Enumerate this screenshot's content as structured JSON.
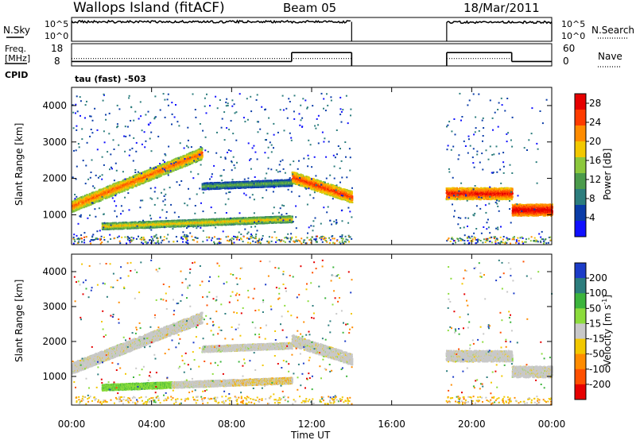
{
  "header": {
    "station": "Wallops Island (fitACF)",
    "beam": "Beam 05",
    "date": "18/Mar/2011"
  },
  "strip_sky": {
    "left_label": "N.Sky",
    "right_label": "N.Search",
    "tick_top": "10^5",
    "tick_bottom": "10^0",
    "y_log_range": [
      0,
      5
    ],
    "segments": [
      {
        "x_range": [
          "00:00",
          "14:00"
        ],
        "level_log": 4.1
      },
      {
        "x_range": [
          "18:45",
          "24:00"
        ],
        "level_log": 4.0
      }
    ]
  },
  "strip_freq": {
    "left_label_line1": "Freq.",
    "left_label_line2": "[MHz]",
    "right_label": "Nave",
    "left_ticks": [
      "18",
      "8"
    ],
    "right_ticks": [
      "60",
      "0"
    ],
    "freq_range_mhz": [
      8,
      18
    ],
    "nave_range": [
      0,
      60
    ],
    "freq_segments": [
      {
        "x_range": [
          "00:00",
          "11:00"
        ],
        "freq_mhz": 10
      },
      {
        "x_range": [
          "11:00",
          "14:00"
        ],
        "freq_mhz": 14
      },
      {
        "x_range": [
          "18:45",
          "22:00"
        ],
        "freq_mhz": 14
      },
      {
        "x_range": [
          "22:00",
          "24:00"
        ],
        "freq_mhz": 10
      }
    ],
    "nave_segments": [
      {
        "x_range": [
          "00:00",
          "14:00"
        ],
        "nave": 20
      },
      {
        "x_range": [
          "18:45",
          "22:00"
        ],
        "nave": 20
      }
    ]
  },
  "cpid": {
    "label": "CPID",
    "value": "tau (fast) -503"
  },
  "chart_data": [
    {
      "type": "heatmap",
      "quantity": "power",
      "ylabel": "Slant Range [km]",
      "xlabel": "Time UT",
      "x_ticks": [
        "00:00",
        "04:00",
        "08:00",
        "12:00",
        "16:00",
        "20:00",
        "00:00"
      ],
      "x_range_hours": [
        0,
        24
      ],
      "y_ticks": [
        "1000",
        "2000",
        "3000",
        "4000"
      ],
      "y_range_km": [
        180,
        4500
      ],
      "colorbar": {
        "label": "Power [dB]",
        "ticks": [
          "4",
          "8",
          "12",
          "16",
          "20",
          "24",
          "28"
        ],
        "range": [
          0,
          30
        ],
        "colors": [
          "#1010ff",
          "#0a3ca8",
          "#2c7d7d",
          "#4b9b4b",
          "#8cc83c",
          "#f2c800",
          "#ff8c00",
          "#ff3c00",
          "#e60000"
        ]
      },
      "bands": [
        {
          "t": [
            0,
            6.5
          ],
          "r": [
            1250,
            2700
          ],
          "power_db": 16
        },
        {
          "t": [
            6.5,
            11
          ],
          "r": [
            1800,
            1900
          ],
          "power_db": 6
        },
        {
          "t": [
            1.5,
            11
          ],
          "r": [
            700,
            900
          ],
          "power_db": 12
        },
        {
          "t": [
            11,
            14
          ],
          "r": [
            2050,
            1500
          ],
          "power_db": 18
        },
        {
          "t": [
            18.7,
            22
          ],
          "r": [
            1600,
            1600
          ],
          "power_db": 20
        },
        {
          "t": [
            22,
            24
          ],
          "r": [
            1150,
            1150
          ],
          "power_db": 22
        }
      ]
    },
    {
      "type": "heatmap",
      "quantity": "velocity",
      "ylabel": "Slant Range [km]",
      "xlabel": "Time UT",
      "x_ticks": [
        "00:00",
        "04:00",
        "08:00",
        "12:00",
        "16:00",
        "20:00",
        "00:00"
      ],
      "x_range_hours": [
        0,
        24
      ],
      "y_ticks": [
        "1000",
        "2000",
        "3000",
        "4000"
      ],
      "y_range_km": [
        180,
        4500
      ],
      "colorbar": {
        "label": "Velocity [m s^-1]",
        "label_main": "Velocity [m s",
        "label_sup": "-1",
        "label_close": "]",
        "ticks": [
          "200",
          "100",
          "50",
          "15",
          "-15",
          "-50",
          "-100",
          "-200"
        ],
        "colors": [
          "#1c3cc8",
          "#2c7d7d",
          "#3cb43c",
          "#8cdc3c",
          "#c8c8c8",
          "#f2c800",
          "#ff8c00",
          "#ff5000",
          "#e60000"
        ]
      }
    }
  ]
}
